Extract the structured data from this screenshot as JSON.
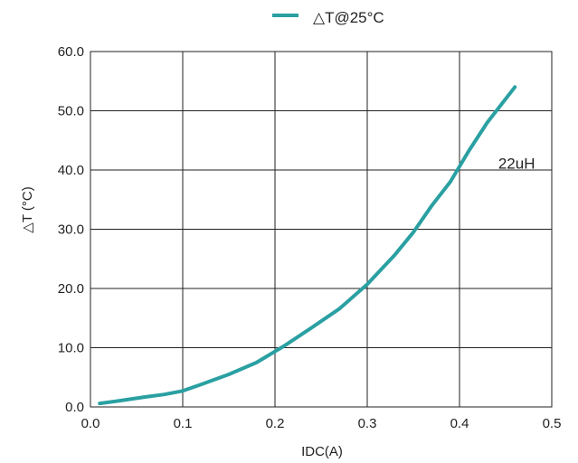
{
  "chart_data": {
    "type": "line",
    "title": "",
    "xlabel": "IDC(A)",
    "ylabel": "△T (°C)",
    "xlim": [
      0.0,
      0.5
    ],
    "ylim": [
      0.0,
      60.0
    ],
    "x_ticks": [
      0.0,
      0.1,
      0.2,
      0.3,
      0.4,
      0.5
    ],
    "x_tick_labels": [
      "0.0",
      "0.1",
      "0.2",
      "0.3",
      "0.4",
      "0.5"
    ],
    "y_ticks": [
      0,
      10,
      20,
      30,
      40,
      50,
      60
    ],
    "y_tick_labels": [
      "0.0",
      "10.0",
      "20.0",
      "30.0",
      "40.0",
      "50.0",
      "60.0"
    ],
    "grid": true,
    "legend_position": "top-center",
    "series": [
      {
        "name": "△T@25°C",
        "color": "#2aa0a2",
        "x": [
          0.01,
          0.03,
          0.06,
          0.08,
          0.1,
          0.12,
          0.15,
          0.18,
          0.21,
          0.24,
          0.27,
          0.3,
          0.33,
          0.35,
          0.37,
          0.39,
          0.41,
          0.43,
          0.46
        ],
        "y": [
          0.6,
          1.0,
          1.7,
          2.1,
          2.7,
          3.8,
          5.5,
          7.5,
          10.3,
          13.4,
          16.6,
          20.7,
          25.7,
          29.5,
          34.0,
          38.0,
          43.2,
          48.0,
          54.0
        ]
      }
    ],
    "annotations": [
      {
        "text": "22uH",
        "x": 0.442,
        "y": 40.2
      }
    ]
  }
}
